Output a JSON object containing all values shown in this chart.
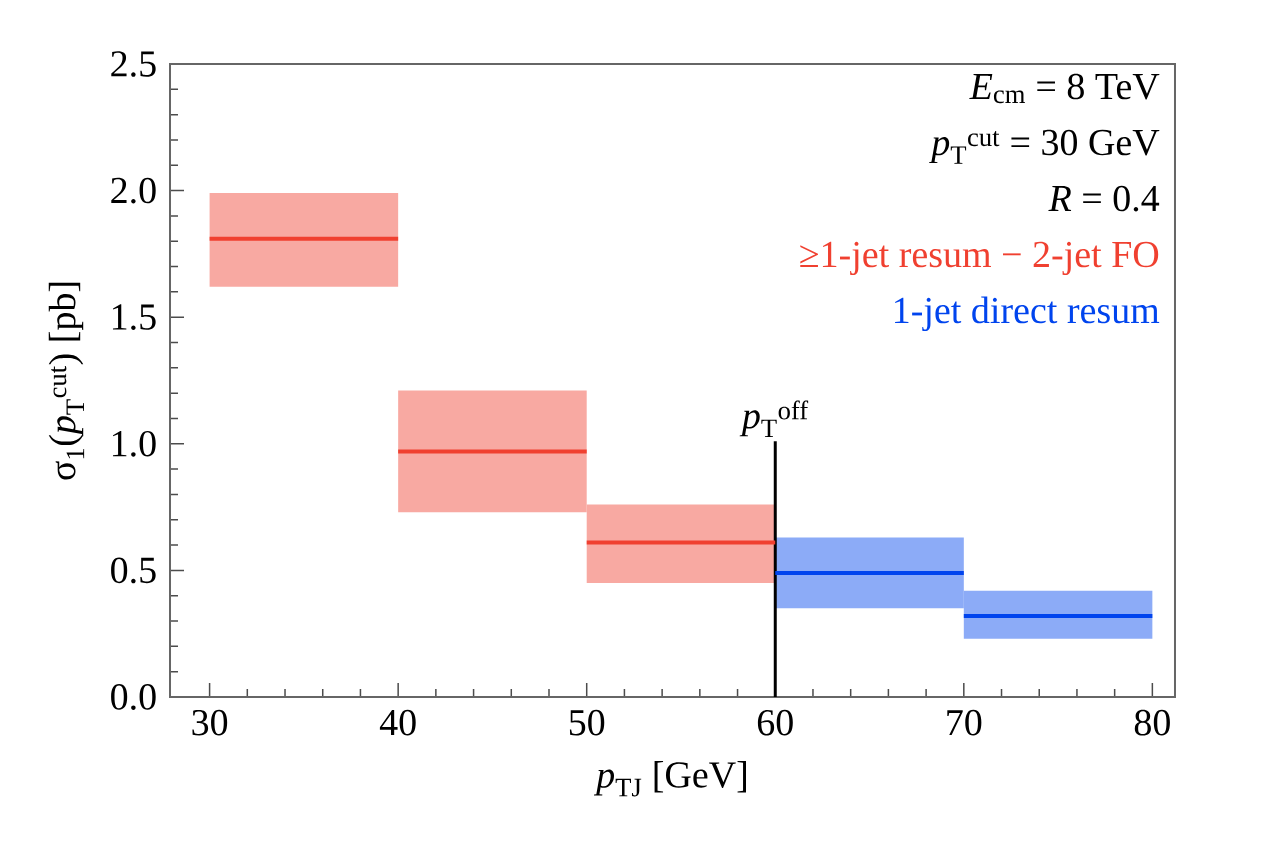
{
  "chart_data": {
    "type": "line",
    "xlabel": "*p*$_{TJ}$ [GeV]",
    "ylabel": "σ$_{1}$(*p*$_{T}$$^{cut}$)  [pb]",
    "annotations": [
      "*E*$_{cm}$ = 8 TeV",
      "*p*$_{T}$$^{cut}$ = 30 GeV",
      "*R* = 0.4"
    ],
    "series": [
      {
        "name": "≥1-jet resum − 2-jet FO",
        "color": "#f04030",
        "x": [
          30,
          40,
          null,
          40,
          50,
          null,
          50,
          60
        ],
        "values": [
          1.81,
          1.81,
          null,
          0.97,
          0.97,
          null,
          0.61,
          0.61
        ],
        "lower": [
          1.62,
          1.62,
          null,
          0.73,
          0.73,
          null,
          0.45,
          0.45
        ],
        "upper": [
          1.99,
          1.99,
          null,
          1.21,
          1.21,
          null,
          0.76,
          0.76
        ]
      },
      {
        "name": "1-jet direct resum",
        "color": "#0044ee",
        "x": [
          60,
          70,
          null,
          70,
          80
        ],
        "values": [
          0.49,
          0.49,
          null,
          0.32,
          0.32
        ],
        "lower": [
          0.35,
          0.35,
          null,
          0.23,
          0.23
        ],
        "upper": [
          0.63,
          0.63,
          null,
          0.42,
          0.42
        ]
      }
    ],
    "ref_lines": [
      {
        "axis": "x",
        "value": 60,
        "label": "*p*$_{T}$$^{off}$",
        "color": "#000000"
      }
    ],
    "xlim": [
      27.9,
      81.2
    ],
    "ylim": [
      0,
      2.5
    ],
    "xticks": [
      30,
      40,
      50,
      60,
      70,
      80
    ],
    "yticks": [
      {
        "value": 0,
        "label": "0.0"
      },
      0.5,
      {
        "value": 1,
        "label": "1.0"
      },
      1.5,
      {
        "value": 2,
        "label": "2.0"
      },
      2.5
    ],
    "legend": "top right"
  }
}
